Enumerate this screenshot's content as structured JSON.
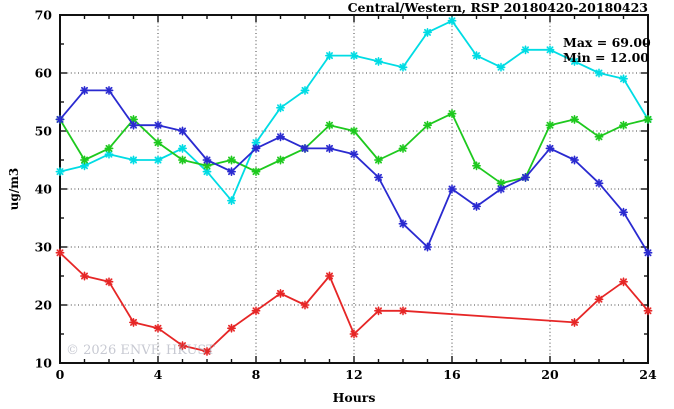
{
  "page": {
    "background": "#ffffff"
  },
  "header": {
    "title": "Central/Western, RSP 20180420-20180423"
  },
  "stats_box": {
    "max_label": "Max = 69.00",
    "min_label": "Min = 12.00"
  },
  "watermark": {
    "text": "© 2026 ENVF, HKUST"
  },
  "axes": {
    "ylabel": "ug/m3",
    "xlabel": "Hours"
  },
  "chart_data": {
    "type": "line",
    "title": "Central/Western, RSP 20180420-20180423",
    "xlabel": "Hours",
    "ylabel": "ug/m3",
    "xlim": [
      0,
      24
    ],
    "ylim": [
      10,
      70
    ],
    "x_ticks": [
      0,
      4,
      8,
      12,
      16,
      20,
      24
    ],
    "y_ticks": [
      10,
      20,
      30,
      40,
      50,
      60,
      70
    ],
    "x_minor_step": 1,
    "y_minor_step": 5,
    "grid": "dotted-at-major-ticks",
    "legend_position": "none",
    "annotations": {
      "max": 69.0,
      "min": 12.0
    },
    "marker": "asterisk",
    "x": [
      0,
      1,
      2,
      3,
      4,
      5,
      6,
      7,
      8,
      9,
      10,
      11,
      12,
      13,
      14,
      15,
      16,
      17,
      18,
      19,
      20,
      21,
      22,
      23,
      24
    ],
    "series": [
      {
        "name": "cyan",
        "color": "#00DCE4",
        "values": [
          43,
          44,
          46,
          45,
          45,
          47,
          43,
          38,
          48,
          54,
          57,
          63,
          63,
          62,
          61,
          67,
          69,
          63,
          61,
          64,
          64,
          62,
          60,
          59,
          52
        ]
      },
      {
        "name": "green",
        "color": "#1EC91E",
        "values": [
          52,
          45,
          47,
          52,
          48,
          45,
          44,
          45,
          43,
          45,
          47,
          51,
          50,
          45,
          47,
          51,
          53,
          44,
          41,
          42,
          51,
          52,
          49,
          51,
          52
        ]
      },
      {
        "name": "blue",
        "color": "#2A2AD0",
        "values": [
          52,
          57,
          57,
          51,
          51,
          50,
          45,
          43,
          47,
          49,
          47,
          47,
          46,
          42,
          34,
          30,
          40,
          37,
          40,
          42,
          47,
          45,
          41,
          36,
          29
        ]
      },
      {
        "name": "red",
        "color": "#E62626",
        "values": [
          29,
          25,
          24,
          17,
          16,
          13,
          12,
          16,
          19,
          22,
          20,
          25,
          15,
          19,
          19,
          null,
          null,
          null,
          null,
          null,
          null,
          17,
          21,
          24,
          19
        ]
      }
    ]
  }
}
